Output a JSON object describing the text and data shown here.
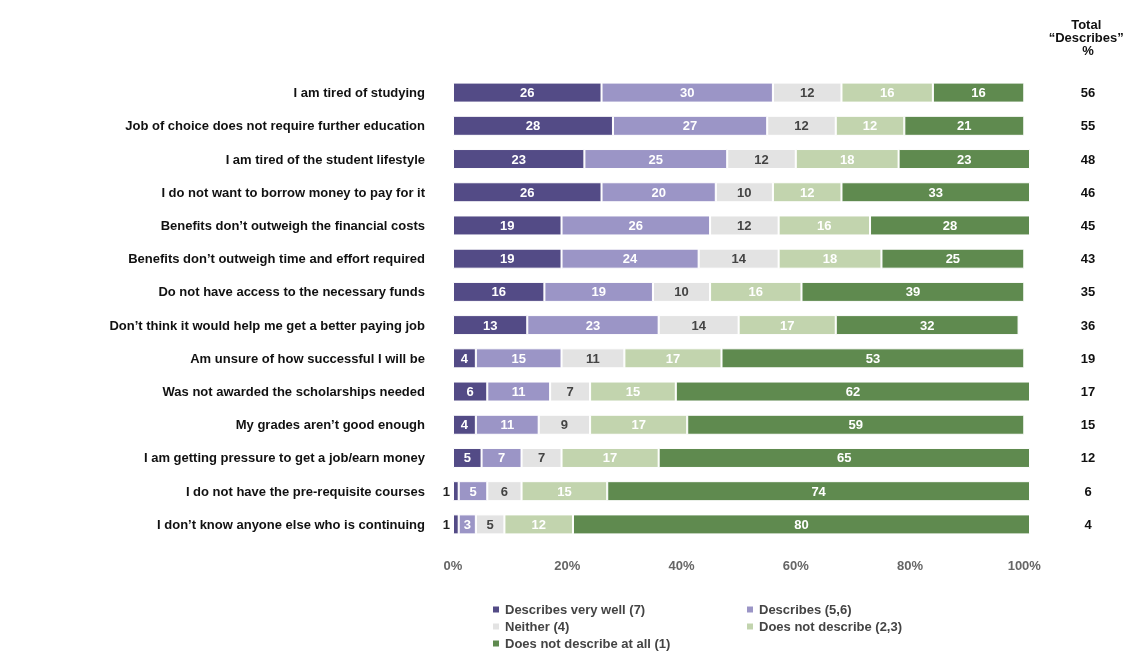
{
  "chart_data": {
    "type": "bar",
    "orientation": "horizontal",
    "stacked": true,
    "categories": [
      "I am tired of studying",
      "Job of choice does not require further education",
      "I am tired of the student lifestyle",
      "I do not want to borrow money to pay for it",
      "Benefits don’t outweigh the financial costs",
      "Benefits don’t outweigh time and effort required",
      "Do not have access to the necessary funds",
      "Don’t think it would help me get a better paying job",
      "Am unsure of how successful I will be",
      "Was not awarded the scholarships needed",
      "My grades aren’t good enough",
      "I am getting pressure to get a job/earn money",
      "I do not have the pre-requisite courses",
      "I don’t know anyone else who is continuing"
    ],
    "series": [
      {
        "name": "Describes very well (7)",
        "color": "#534b86",
        "values": [
          26,
          28,
          23,
          26,
          19,
          19,
          16,
          13,
          4,
          6,
          4,
          5,
          1,
          1
        ]
      },
      {
        "name": "Describes (5,6)",
        "color": "#9b95c6",
        "values": [
          30,
          27,
          25,
          20,
          26,
          24,
          19,
          23,
          15,
          11,
          11,
          7,
          5,
          3
        ]
      },
      {
        "name": "Neither (4)",
        "color": "#e3e3e3",
        "values": [
          12,
          12,
          12,
          10,
          12,
          14,
          10,
          14,
          11,
          7,
          9,
          7,
          6,
          5
        ]
      },
      {
        "name": "Does not describe (2,3)",
        "color": "#c2d4ae",
        "values": [
          16,
          12,
          18,
          12,
          16,
          18,
          16,
          17,
          17,
          15,
          17,
          17,
          15,
          12
        ]
      },
      {
        "name": "Does not describe at all (1)",
        "color": "#5f8a4f",
        "values": [
          16,
          21,
          23,
          33,
          28,
          25,
          39,
          32,
          53,
          62,
          59,
          65,
          74,
          80
        ]
      }
    ],
    "xlim": [
      0,
      101
    ],
    "xticks": [
      {
        "value": 0,
        "label": "0%"
      },
      {
        "value": 20,
        "label": "20%"
      },
      {
        "value": 40,
        "label": "40%"
      },
      {
        "value": 60,
        "label": "60%"
      },
      {
        "value": 80,
        "label": "80%"
      },
      {
        "value": 100,
        "label": "100%"
      }
    ],
    "data_labels": true,
    "annotations": [
      "Total “Describes” %",
      "56",
      "55",
      "48",
      "46",
      "45",
      "43",
      "35",
      "36",
      "19",
      "17",
      "15",
      "12",
      "6",
      "4"
    ],
    "grid": false,
    "legend": "bottom"
  }
}
